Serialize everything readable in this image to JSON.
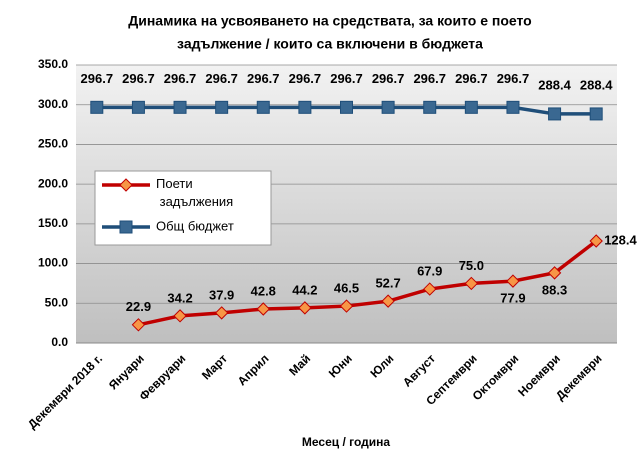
{
  "chart_data": {
    "type": "line",
    "title": "Динамика на усвояването на средствата, за които е поето",
    "subtitle": "задължение / които са включени в бюджета",
    "x_label": "Месец / година",
    "categories": [
      "Декември 2018 г.",
      "Януари",
      "Февруари",
      "Март",
      "Април",
      "Май",
      "Юни",
      "Юли",
      "Август",
      "Септември",
      "Октомври",
      "Ноември",
      "Декември"
    ],
    "series": [
      {
        "name": "Поети задължения",
        "color": "#c00000",
        "marker_color": "#f79646",
        "values": [
          null,
          22.9,
          34.2,
          37.9,
          42.8,
          44.2,
          46.5,
          52.7,
          67.9,
          75.0,
          77.9,
          88.3,
          128.4
        ],
        "value_labels": [
          null,
          "22.9",
          "34.2",
          "37.9",
          "42.8",
          "44.2",
          "46.5",
          "52.7",
          "67.9",
          "75.0",
          "77.9",
          "88.3",
          "128.4"
        ]
      },
      {
        "name": "Общ бюджет",
        "color": "#1f4e79",
        "marker_color": "#3a6891",
        "values": [
          296.7,
          296.7,
          296.7,
          296.7,
          296.7,
          296.7,
          296.7,
          296.7,
          296.7,
          296.7,
          296.7,
          288.4,
          288.4
        ]
      }
    ],
    "ylim": [
      0,
      350
    ],
    "yticks": [
      {
        "value": 0,
        "label": "0.0"
      },
      {
        "value": 50,
        "label": "50.0"
      },
      {
        "value": 100,
        "label": "100.0"
      },
      {
        "value": 150,
        "label": "150.0"
      },
      {
        "value": 200,
        "label": "200.0"
      },
      {
        "value": 250,
        "label": "250.0"
      },
      {
        "value": 300,
        "label": "300.0"
      },
      {
        "value": 350,
        "label": "350.0"
      }
    ],
    "grid": true
  }
}
